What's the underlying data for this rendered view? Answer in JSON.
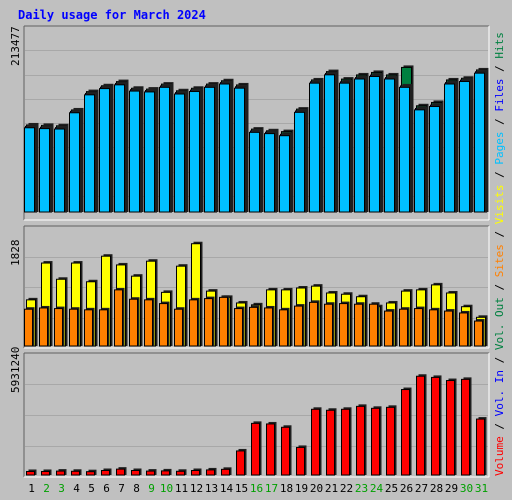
{
  "chart_data": {
    "type": "bar",
    "title": "Daily usage for March 2024",
    "categories": [
      "1",
      "2",
      "3",
      "4",
      "5",
      "6",
      "7",
      "8",
      "9",
      "10",
      "11",
      "12",
      "13",
      "14",
      "15",
      "16",
      "17",
      "18",
      "19",
      "20",
      "21",
      "22",
      "23",
      "24",
      "25",
      "26",
      "27",
      "28",
      "29",
      "30",
      "31"
    ],
    "weekend_days": [
      "2",
      "3",
      "9",
      "10",
      "16",
      "17",
      "23",
      "24",
      "30",
      "31"
    ],
    "colors": {
      "background": "#c0c0c0",
      "title": "#0000ff",
      "hits": "#008040",
      "files": "#0000ff",
      "pages": "#00c0ff",
      "visits": "#ffff00",
      "sites": "#ff8000",
      "kbytes_in": "#ff0000",
      "weekday_label": "#000000",
      "weekend_label": "#00a000"
    },
    "panels": [
      {
        "name": "hits-files-pages",
        "ymax_label": "213477",
        "ymax": 213477,
        "series": [
          {
            "name": "Hits",
            "color": "#008040",
            "values": [
              102000,
              101500,
              101000,
              120000,
              142000,
              149000,
              154000,
              146000,
              145000,
              151000,
              143000,
              146000,
              151000,
              155000,
              150000,
              97000,
              95000,
              94000,
              121000,
              156000,
              166000,
              157000,
              162000,
              165000,
              162000,
              171000,
              125000,
              129000,
              156000,
              158000,
              168000
            ]
          },
          {
            "name": "Files",
            "color": "#0000ff",
            "values": [
              101500,
              100500,
              100000,
              119500,
              141000,
              148500,
              153000,
              145500,
              144500,
              150000,
              142000,
              145000,
              150000,
              154000,
              149000,
              96000,
              94500,
              92000,
              120000,
              155000,
              165000,
              155000,
              160000,
              163000,
              160000,
              150000,
              123000,
              127000,
              154000,
              157000,
              167000
            ]
          },
          {
            "name": "Pages",
            "color": "#00c0ff",
            "values": [
              101000,
              100000,
              99500,
              119000,
              140500,
              148000,
              152500,
              145000,
              144000,
              149500,
              141500,
              144500,
              149500,
              153500,
              148500,
              95500,
              94000,
              91500,
              119500,
              154500,
              164500,
              154500,
              159500,
              162500,
              159500,
              149500,
              122500,
              126500,
              153500,
              156500,
              166500
            ]
          }
        ]
      },
      {
        "name": "visits-sites",
        "ymax_label": "1828",
        "ymax": 1828,
        "series": [
          {
            "name": "Visits",
            "color": "#ffff00",
            "values": [
              740,
              1330,
              1070,
              1330,
              1030,
              1440,
              1300,
              1120,
              1360,
              860,
              1280,
              1640,
              880,
              780,
              690,
              660,
              900,
              900,
              930,
              960,
              850,
              830,
              790,
              630,
              690,
              880,
              900,
              980,
              850,
              630,
              460
            ]
          },
          {
            "name": "Sites",
            "color": "#ff8000",
            "values": [
              590,
              610,
              600,
              590,
              580,
              580,
              900,
              750,
              740,
              680,
              590,
              740,
              760,
              780,
              600,
              620,
              610,
              580,
              640,
              700,
              670,
              680,
              670,
              670,
              560,
              590,
              600,
              580,
              560,
              530,
              400
            ]
          }
        ]
      },
      {
        "name": "volume",
        "ymax_label": "5931240",
        "ymax": 5931240,
        "series": [
          {
            "name": "Volume",
            "color": "#ff0000",
            "values": [
              180000,
              180000,
              200000,
              190000,
              170000,
              230000,
              300000,
              230000,
              200000,
              210000,
              190000,
              230000,
              260000,
              290000,
              1230000,
              2640000,
              2610000,
              2440000,
              1410000,
              3360000,
              3310000,
              3360000,
              3510000,
              3410000,
              3460000,
              4370000,
              5050000,
              4990000,
              4830000,
              4890000,
              2860000
            ]
          }
        ]
      }
    ],
    "legend": {
      "placement": "right",
      "items": [
        {
          "label": "Hits",
          "color": "#008040"
        },
        {
          "label": "Files",
          "color": "#0000ff"
        },
        {
          "label": "Pages",
          "color": "#00c0ff"
        },
        {
          "label": "Visits",
          "color": "#ffff00"
        },
        {
          "label": "Sites",
          "color": "#ff8000"
        },
        {
          "label": "Vol. Out",
          "color": "#008040"
        },
        {
          "label": "Vol. In",
          "color": "#0000ff"
        },
        {
          "label": "Volume",
          "color": "#ff0000"
        }
      ],
      "separator": "/"
    },
    "grid": true
  }
}
